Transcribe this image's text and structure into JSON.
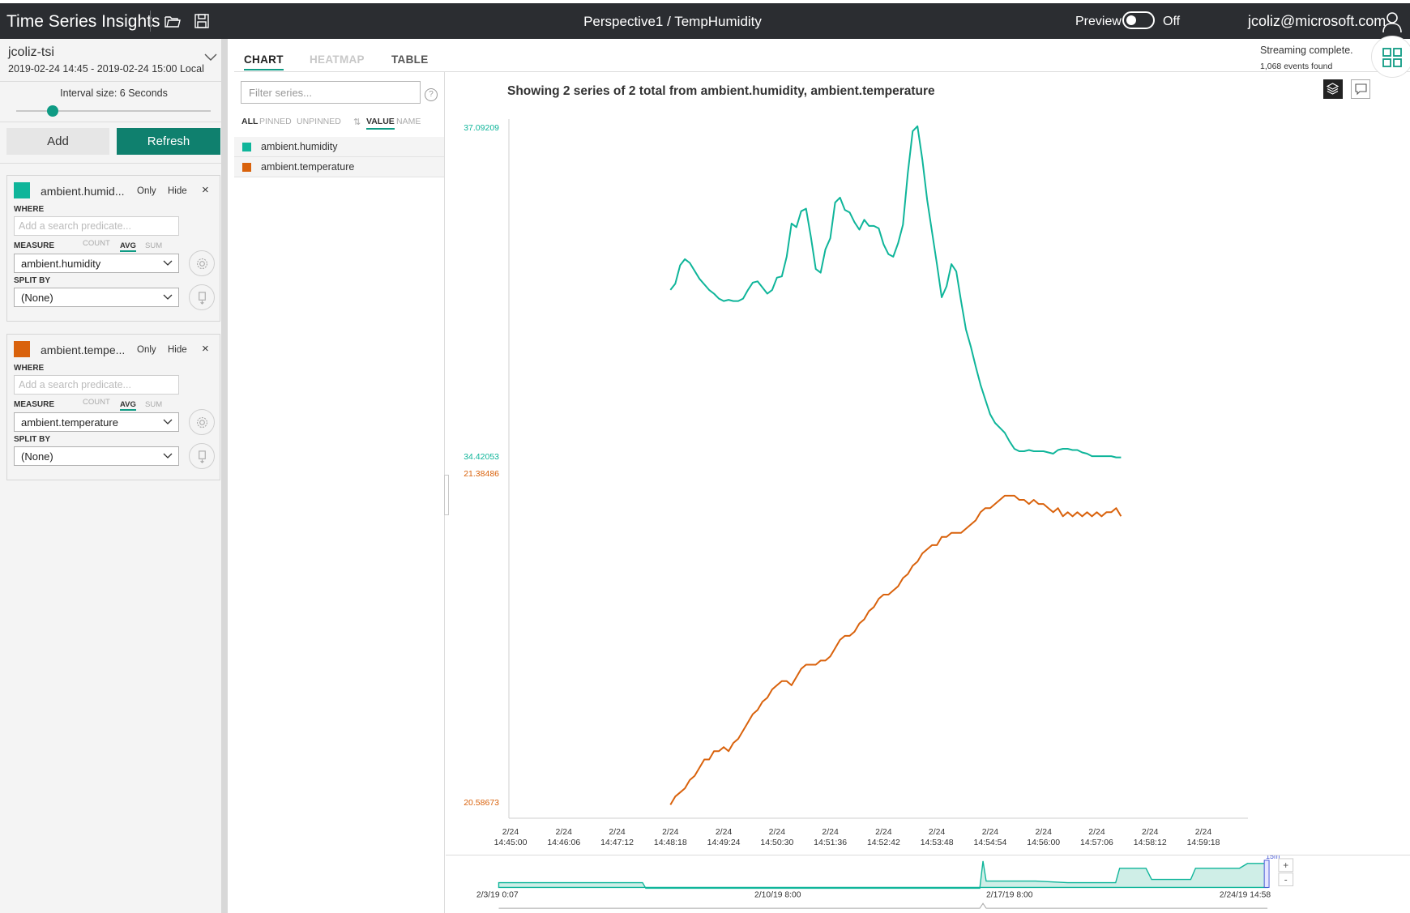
{
  "topbar": {
    "app_title": "Time Series Insights",
    "perspective": "Perspective1 / TempHumidity",
    "preview_label": "Preview",
    "toggle_state": "Off",
    "user_email": "jcoliz@microsoft.com"
  },
  "environment": {
    "name": "jcoliz-tsi",
    "range": "2019-02-24 14:45  -  2019-02-24 15:00 Local",
    "interval_label": "Interval size: 6 Seconds"
  },
  "buttons": {
    "add": "Add",
    "refresh": "Refresh"
  },
  "cards": [
    {
      "title": "ambient.humid...",
      "color": "#0fb59a",
      "only": "Only",
      "hide": "Hide",
      "close": "×",
      "where_label": "WHERE",
      "where_placeholder": "Add a search predicate...",
      "measure_label": "MEASURE",
      "agg_count": "COUNT",
      "agg_avg": "AVG",
      "agg_sum": "SUM",
      "measure_value": "ambient.humidity",
      "split_label": "SPLIT BY",
      "split_value": "(None)"
    },
    {
      "title": "ambient.tempe...",
      "color": "#d9620c",
      "only": "Only",
      "hide": "Hide",
      "close": "×",
      "where_label": "WHERE",
      "where_placeholder": "Add a search predicate...",
      "measure_label": "MEASURE",
      "agg_count": "COUNT",
      "agg_avg": "AVG",
      "agg_sum": "SUM",
      "measure_value": "ambient.temperature",
      "split_label": "SPLIT BY",
      "split_value": "(None)"
    }
  ],
  "tabs": {
    "chart": "CHART",
    "heatmap": "HEATMAP",
    "table": "TABLE"
  },
  "series_panel": {
    "filter_placeholder": "Filter series...",
    "help": "?",
    "filter_all": "ALL",
    "filter_pinned": "PINNED",
    "filter_unpinned": "UNPINNED",
    "sort_value": "VALUE",
    "sort_name": "NAME",
    "series": [
      {
        "name": "ambient.humidity",
        "color": "#0fb59a"
      },
      {
        "name": "ambient.temperature",
        "color": "#d9620c"
      }
    ]
  },
  "status": {
    "line1": "Streaming complete.",
    "line2": "1,068 events found"
  },
  "chart_title": "Showing 2 series of 2 total from ambient.humidity, ambient.temperature",
  "chart_data": {
    "type": "line",
    "x_ticks": [
      [
        "2/24",
        "14:45:00"
      ],
      [
        "2/24",
        "14:46:06"
      ],
      [
        "2/24",
        "14:47:12"
      ],
      [
        "2/24",
        "14:48:18"
      ],
      [
        "2/24",
        "14:49:24"
      ],
      [
        "2/24",
        "14:50:30"
      ],
      [
        "2/24",
        "14:51:36"
      ],
      [
        "2/24",
        "14:52:42"
      ],
      [
        "2/24",
        "14:53:48"
      ],
      [
        "2/24",
        "14:54:54"
      ],
      [
        "2/24",
        "14:56:00"
      ],
      [
        "2/24",
        "14:57:06"
      ],
      [
        "2/24",
        "14:58:12"
      ],
      [
        "2/24",
        "14:59:18"
      ]
    ],
    "x_range_seconds": [
      0,
      900
    ],
    "series": [
      {
        "name": "ambient.humidity",
        "color": "#0fb59a",
        "ymin_label": "34.42053",
        "ymax_label": "37.09209",
        "ylim": [
          34.42053,
          37.09209
        ],
        "x": [
          198,
          204,
          210,
          216,
          222,
          234,
          246,
          252,
          258,
          264,
          270,
          276,
          282,
          288,
          294,
          300,
          306,
          312,
          318,
          324,
          330,
          336,
          342,
          348,
          354,
          360,
          366,
          372,
          378,
          384,
          390,
          396,
          402,
          408,
          414,
          420,
          426,
          432,
          438,
          444,
          450,
          456,
          462,
          468,
          474,
          480,
          486,
          492,
          498,
          504,
          510,
          516,
          522,
          528,
          534,
          540,
          546,
          552,
          558,
          564,
          570,
          576,
          582,
          588,
          594,
          600,
          606,
          612,
          618,
          624,
          630,
          636,
          642,
          648,
          654,
          660,
          666,
          672,
          678,
          684,
          690,
          696,
          702,
          708,
          714,
          720,
          726,
          732,
          738,
          744,
          750,
          756
        ],
        "values": [
          35.77,
          35.82,
          35.97,
          36.02,
          35.99,
          35.86,
          35.77,
          35.74,
          35.7,
          35.68,
          35.69,
          35.68,
          35.68,
          35.7,
          35.77,
          35.83,
          35.84,
          35.79,
          35.74,
          35.77,
          35.87,
          35.88,
          36.04,
          36.31,
          36.28,
          36.41,
          36.43,
          36.2,
          35.94,
          35.91,
          36.1,
          36.19,
          36.48,
          36.52,
          36.42,
          36.4,
          36.32,
          36.26,
          36.34,
          36.29,
          36.29,
          36.27,
          36.14,
          36.06,
          36.04,
          36.15,
          36.3,
          36.72,
          37.06,
          37.1,
          36.83,
          36.5,
          36.24,
          35.98,
          35.71,
          35.8,
          35.98,
          35.92,
          35.68,
          35.45,
          35.31,
          35.15,
          35.0,
          34.88,
          34.76,
          34.69,
          34.65,
          34.61,
          34.54,
          34.48,
          34.46,
          34.46,
          34.47,
          34.46,
          34.46,
          34.46,
          34.45,
          34.44,
          34.47,
          34.48,
          34.48,
          34.47,
          34.47,
          34.45,
          34.44,
          34.42,
          34.42,
          34.42,
          34.42,
          34.42,
          34.41,
          34.41
        ]
      },
      {
        "name": "ambient.temperature",
        "color": "#d9620c",
        "ymin_label": "20.58673",
        "ymax_label": "21.38486",
        "ylim": [
          20.58673,
          21.38486
        ],
        "x": [
          198,
          204,
          210,
          216,
          222,
          228,
          234,
          240,
          246,
          252,
          258,
          264,
          270,
          276,
          282,
          288,
          294,
          300,
          306,
          312,
          318,
          324,
          330,
          336,
          342,
          348,
          354,
          360,
          366,
          372,
          378,
          384,
          390,
          396,
          402,
          408,
          414,
          420,
          426,
          432,
          438,
          444,
          450,
          456,
          462,
          468,
          474,
          480,
          486,
          492,
          498,
          504,
          510,
          516,
          522,
          528,
          534,
          540,
          546,
          552,
          558,
          564,
          570,
          576,
          582,
          588,
          594,
          600,
          606,
          612,
          618,
          624,
          630,
          636,
          642,
          648,
          654,
          660,
          666,
          672,
          678,
          684,
          690,
          696,
          702,
          708,
          714,
          720,
          726,
          732,
          738,
          744,
          750,
          756
        ],
        "values": [
          20.58,
          20.6,
          20.61,
          20.62,
          20.64,
          20.65,
          20.67,
          20.69,
          20.69,
          20.71,
          20.71,
          20.72,
          20.71,
          20.73,
          20.74,
          20.76,
          20.78,
          20.8,
          20.81,
          20.83,
          20.84,
          20.86,
          20.87,
          20.88,
          20.88,
          20.87,
          20.89,
          20.91,
          20.92,
          20.92,
          20.92,
          20.93,
          20.93,
          20.94,
          20.96,
          20.98,
          20.99,
          20.99,
          21.0,
          21.02,
          21.03,
          21.05,
          21.06,
          21.08,
          21.09,
          21.09,
          21.1,
          21.11,
          21.13,
          21.14,
          21.16,
          21.17,
          21.19,
          21.2,
          21.21,
          21.21,
          21.23,
          21.23,
          21.24,
          21.24,
          21.24,
          21.25,
          21.26,
          21.27,
          21.29,
          21.3,
          21.3,
          21.31,
          21.32,
          21.33,
          21.33,
          21.33,
          21.32,
          21.32,
          21.31,
          21.32,
          21.31,
          21.31,
          21.3,
          21.29,
          21.3,
          21.28,
          21.29,
          21.28,
          21.29,
          21.28,
          21.29,
          21.28,
          21.29,
          21.28,
          21.29,
          21.29,
          21.3,
          21.28
        ]
      }
    ],
    "grid": false
  },
  "timeline": {
    "labels": [
      "2/3/19 0:07",
      "2/10/19 8:00",
      "2/17/19 8:00",
      "2/24/19 14:58"
    ],
    "zoom_label": "15m",
    "zoom_in": "+",
    "zoom_out": "-",
    "color": "#0fb59a"
  }
}
